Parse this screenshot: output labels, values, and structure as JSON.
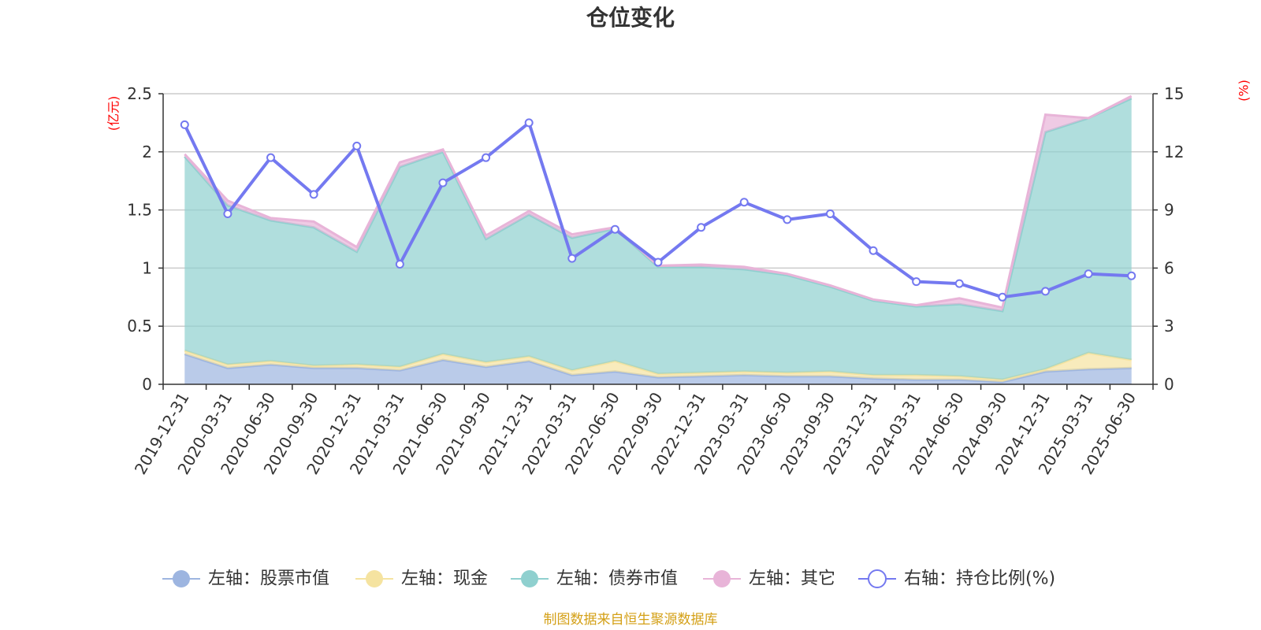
{
  "chart_data": {
    "type": "area",
    "title": "仓位变化",
    "y_left_unit": "(亿元)",
    "y_right_unit": "(%)",
    "y_left_ticks": [
      "0",
      "0.5",
      "1",
      "1.5",
      "2",
      "2.5"
    ],
    "y_right_ticks": [
      "0",
      "3",
      "6",
      "9",
      "12",
      "15"
    ],
    "ylim_left": [
      0,
      2.5
    ],
    "ylim_right": [
      0,
      15
    ],
    "grid": true,
    "legend_position": "bottom",
    "categories": [
      "2019-12-31",
      "2020-03-31",
      "2020-06-30",
      "2020-09-30",
      "2020-12-31",
      "2021-03-31",
      "2021-06-30",
      "2021-09-30",
      "2021-12-31",
      "2022-03-31",
      "2022-06-30",
      "2022-09-30",
      "2022-12-31",
      "2023-03-31",
      "2023-06-30",
      "2023-09-30",
      "2023-12-31",
      "2024-03-31",
      "2024-06-30",
      "2024-09-30",
      "2024-12-31",
      "2025-03-31",
      "2025-06-30"
    ],
    "series": [
      {
        "name": "左轴：股票市值",
        "axis": "left",
        "stacked": true,
        "color": "#9db5e0",
        "values": [
          0.26,
          0.14,
          0.17,
          0.14,
          0.14,
          0.12,
          0.21,
          0.15,
          0.2,
          0.08,
          0.11,
          0.06,
          0.07,
          0.08,
          0.07,
          0.07,
          0.05,
          0.04,
          0.04,
          0.02,
          0.11,
          0.13,
          0.14
        ]
      },
      {
        "name": "左轴：现金",
        "axis": "left",
        "stacked": true,
        "color": "#f5e3a0",
        "values": [
          0.03,
          0.03,
          0.03,
          0.02,
          0.03,
          0.03,
          0.05,
          0.04,
          0.04,
          0.04,
          0.09,
          0.03,
          0.03,
          0.03,
          0.03,
          0.04,
          0.03,
          0.04,
          0.03,
          0.02,
          0.02,
          0.14,
          0.07
        ]
      },
      {
        "name": "左轴：债券市值",
        "axis": "left",
        "stacked": true,
        "color": "#8fd0cf",
        "values": [
          1.67,
          1.37,
          1.21,
          1.19,
          0.97,
          1.72,
          1.74,
          1.06,
          1.22,
          1.14,
          1.14,
          0.92,
          0.91,
          0.88,
          0.84,
          0.73,
          0.64,
          0.59,
          0.62,
          0.59,
          2.04,
          2.02,
          2.25
        ]
      },
      {
        "name": "左轴：其它",
        "axis": "left",
        "stacked": true,
        "color": "#e8b4d8",
        "values": [
          0.02,
          0.04,
          0.02,
          0.05,
          0.04,
          0.04,
          0.02,
          0.03,
          0.03,
          0.03,
          0.01,
          0.01,
          0.02,
          0.02,
          0.01,
          0.01,
          0.01,
          0.01,
          0.05,
          0.03,
          0.15,
          0.0,
          0.02
        ]
      },
      {
        "name": "右轴：持仓比例(%)",
        "axis": "right",
        "stacked": false,
        "color": "#7479f0",
        "values": [
          13.4,
          8.8,
          11.7,
          9.8,
          12.3,
          6.2,
          10.4,
          11.7,
          13.5,
          6.5,
          8.0,
          6.3,
          8.1,
          9.4,
          8.5,
          8.8,
          6.9,
          5.3,
          5.2,
          4.5,
          4.8,
          5.7,
          5.6
        ]
      }
    ]
  },
  "footer": {
    "source": "制图数据来自恒生聚源数据库"
  }
}
